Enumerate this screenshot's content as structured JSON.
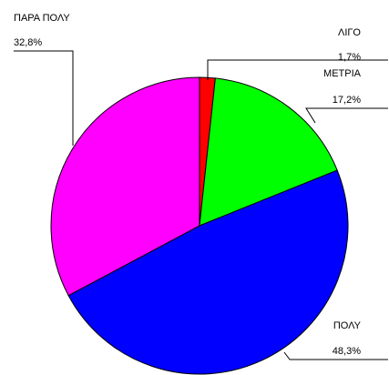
{
  "chart_data": {
    "type": "pie",
    "categories": [
      "ΛΙΓΟ",
      "ΜΕΤΡΙΑ",
      "ΠΟΛΥ",
      "ΠΑΡΑ ΠΟΛΥ"
    ],
    "values": [
      1.7,
      17.2,
      48.3,
      32.8
    ],
    "value_labels": [
      "1,7%",
      "17,2%",
      "48,3%",
      "32,8%"
    ],
    "colors": [
      "#ff0000",
      "#00ff00",
      "#0000ff",
      "#ff00ff"
    ]
  }
}
